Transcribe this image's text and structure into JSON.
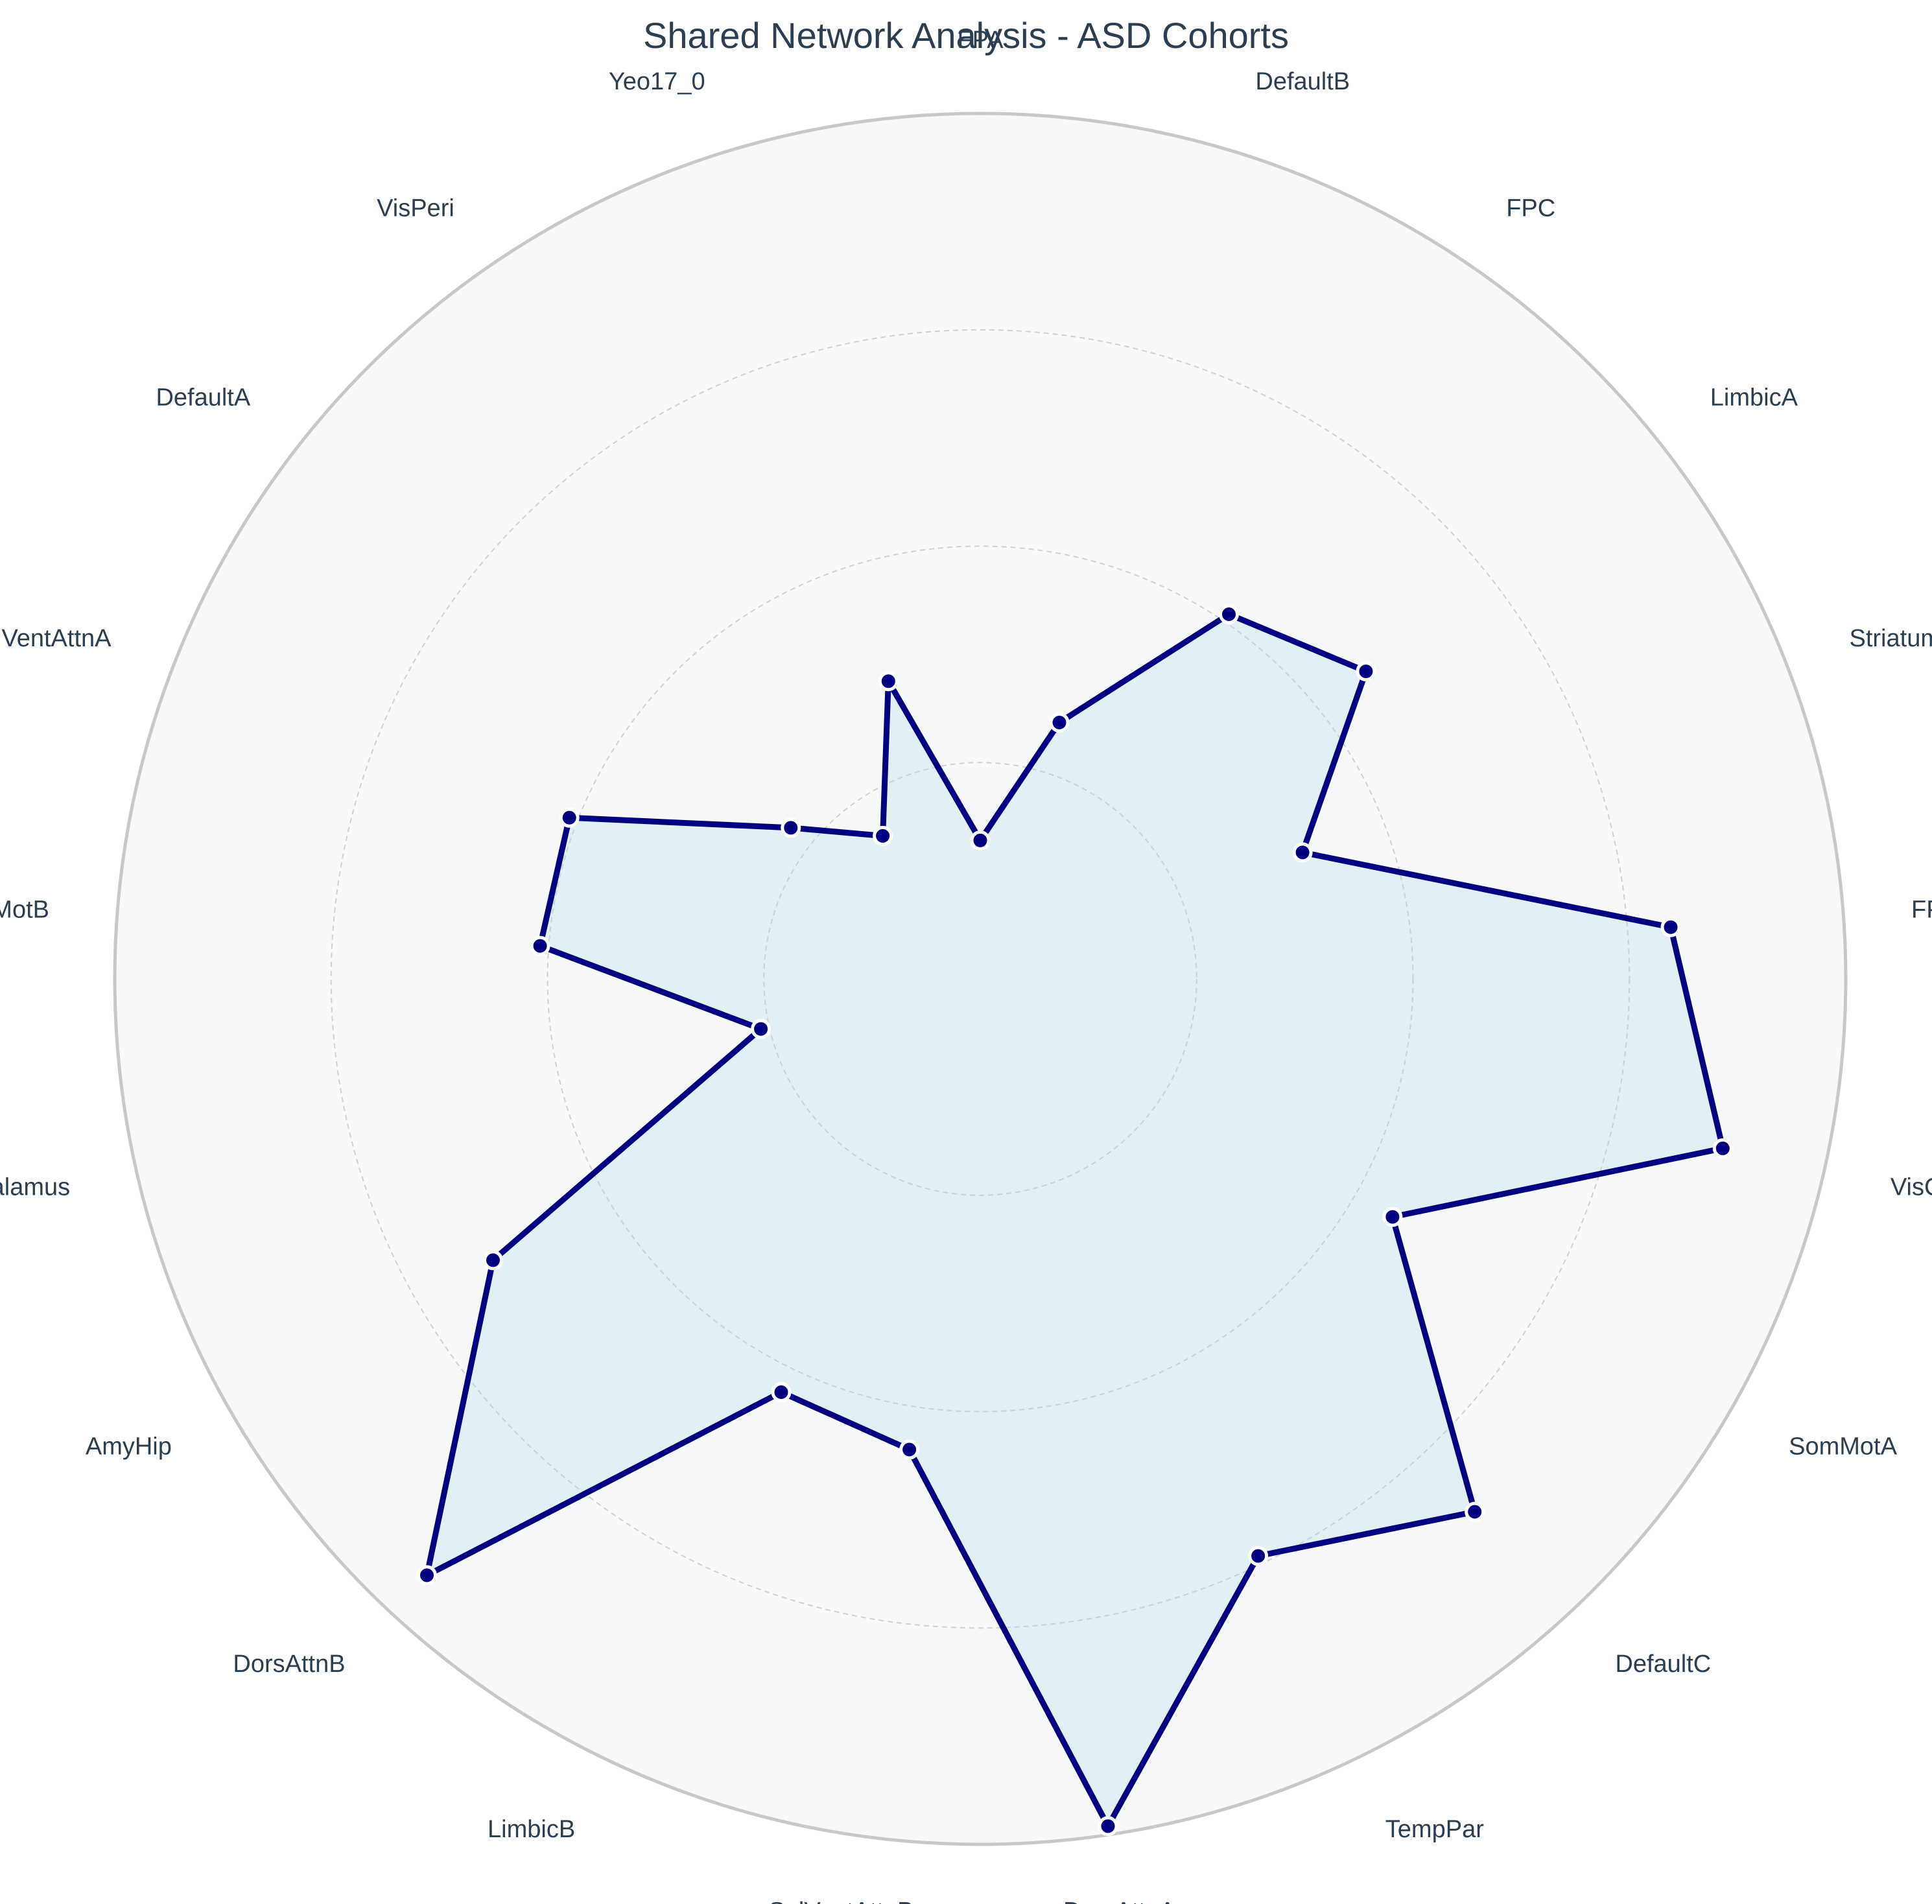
{
  "chart_data": {
    "type": "radar",
    "title": "Shared Network Analysis - ASD Cohorts",
    "categories": [
      "FPA",
      "DefaultB",
      "FPC",
      "LimbicA",
      "Striatum",
      "FPB",
      "VisCent",
      "SomMotA",
      "DefaultC",
      "TempPar",
      "DorsAttnA",
      "SalVentAttnB",
      "LimbicB",
      "DorsAttnB",
      "AmyHip",
      "Thalamus",
      "SomMotB",
      "SalVentAttnA",
      "DefaultA",
      "VisPeri",
      "Yeo17_0"
    ],
    "values": [
      0.16,
      0.31,
      0.51,
      0.57,
      0.4,
      0.8,
      0.88,
      0.55,
      0.84,
      0.74,
      0.99,
      0.55,
      0.53,
      0.94,
      0.65,
      0.26,
      0.51,
      0.51,
      0.28,
      0.2,
      0.36
    ],
    "ylim": [
      0,
      1
    ],
    "radial_gridlines": [
      0.25,
      0.5,
      0.75,
      1.0
    ],
    "radial_tick_labels_shown": false,
    "grid": true,
    "direction": "clockwise from top",
    "colors": {
      "line": "#000080",
      "fill": "#add8e6",
      "marker": "#000080",
      "marker_edge": "#ffffff",
      "background": "#f7f8fa",
      "outer_ring": "#c8c8c8",
      "grid": "#d0d0d0",
      "text": "#2c3e50"
    }
  }
}
